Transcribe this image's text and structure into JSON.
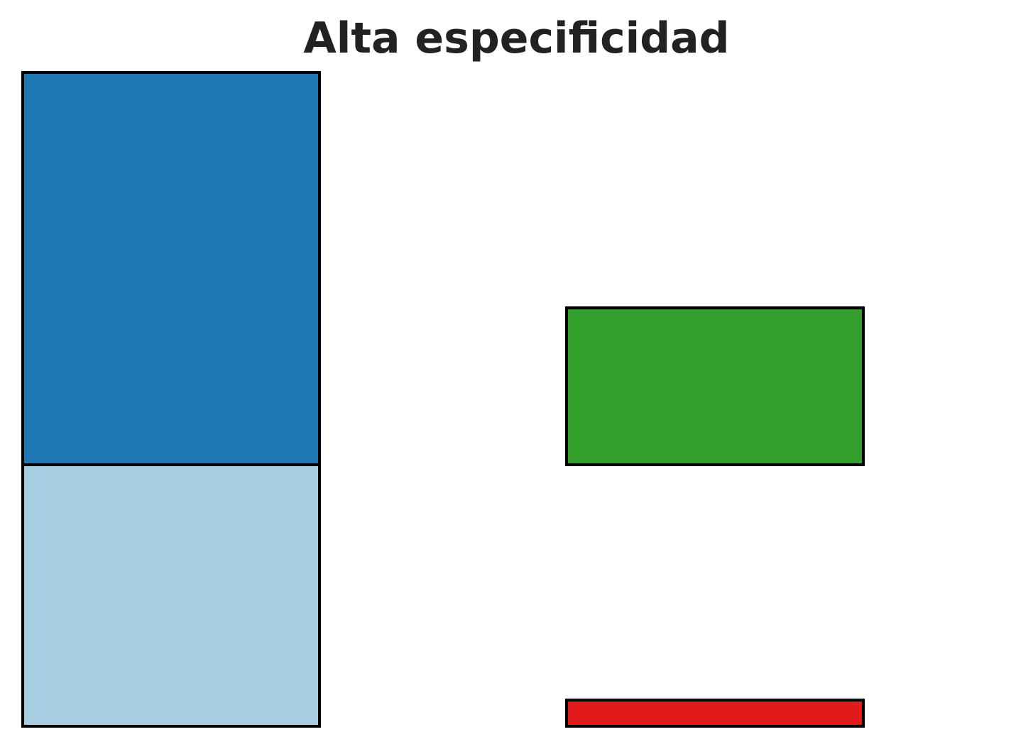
{
  "chart_data": {
    "type": "bar",
    "title": "Alta especificidad",
    "xlabel": "",
    "ylabel": "",
    "grid": false,
    "legend": "none",
    "ylim": [
      0,
      100
    ],
    "bars": [
      {
        "segments": [
          {
            "bottom": 0,
            "top": 40,
            "color": "#a6cee3"
          },
          {
            "bottom": 40,
            "top": 100,
            "color": "#1f78b4"
          }
        ]
      },
      {
        "segments": [
          {
            "bottom": 0,
            "top": 4,
            "color": "#e31a1c"
          },
          {
            "bottom": 40,
            "top": 64,
            "color": "#33a02c"
          }
        ]
      }
    ]
  }
}
